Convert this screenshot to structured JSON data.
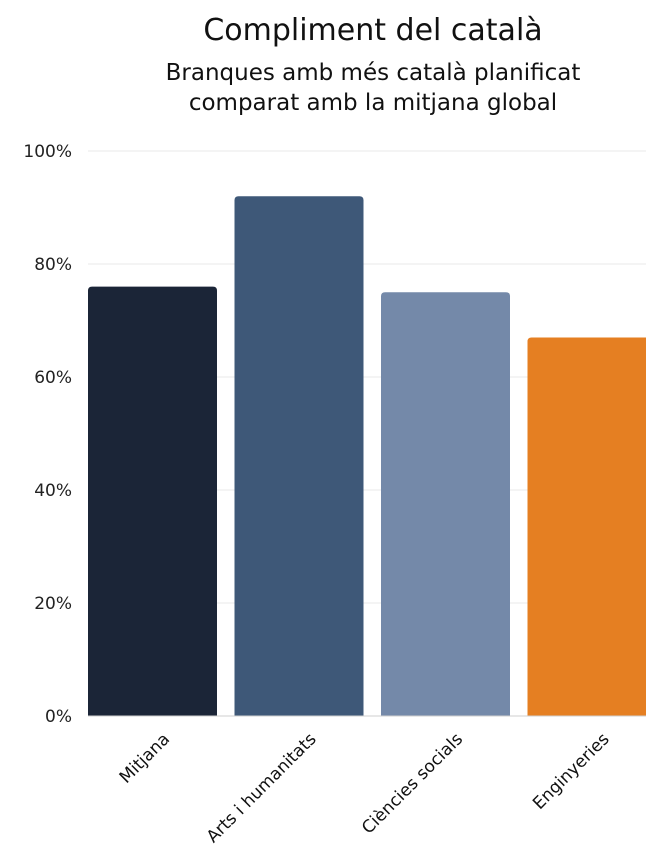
{
  "chart_data": {
    "type": "bar",
    "title": "Compliment del català",
    "subtitle_lines": [
      "Branques amb més català planificat",
      "comparat amb la mitjana global"
    ],
    "categories": [
      "Mitjana",
      "Arts i humanitats",
      "Ciències socials",
      "Enginyeries"
    ],
    "values": [
      76,
      92,
      75,
      67
    ],
    "colors": [
      "#1b2537",
      "#3e5878",
      "#7489a9",
      "#e57f22"
    ],
    "ylim": [
      0,
      100
    ],
    "yticks": [
      0,
      20,
      40,
      60,
      80,
      100
    ],
    "ytick_labels": [
      "0%",
      "20%",
      "40%",
      "60%",
      "80%",
      "100%"
    ],
    "grid": true,
    "legend": "none"
  }
}
